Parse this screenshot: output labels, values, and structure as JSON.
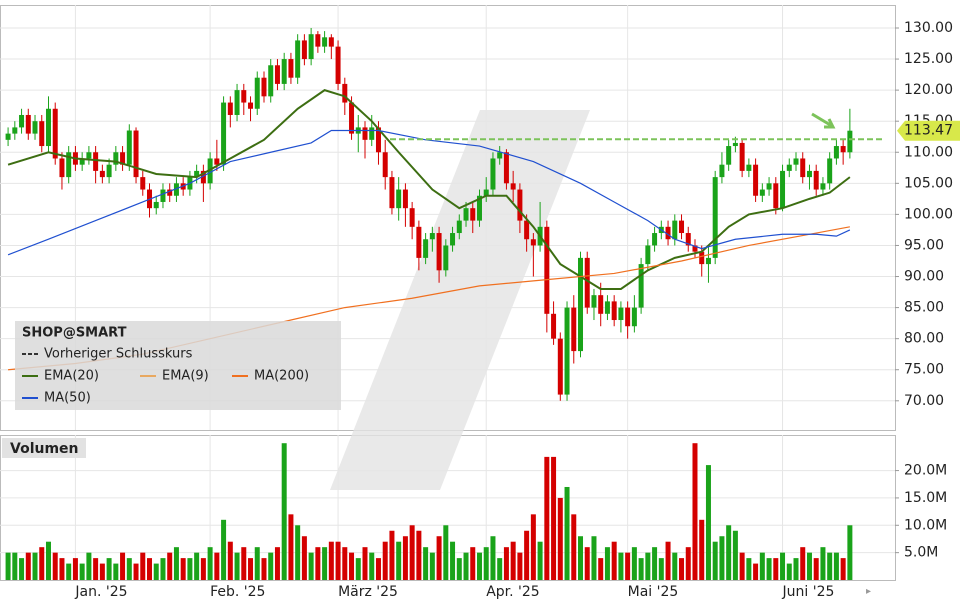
{
  "chart_data": [
    {
      "type": "candlestick",
      "name": "SHOP@SMART",
      "up_color": "#1aa31a",
      "down_color": "#d40000",
      "open": [
        112,
        113,
        114,
        116,
        113,
        115,
        111,
        117,
        109,
        106,
        110,
        108,
        109,
        110,
        107,
        106,
        108,
        110,
        108,
        113.5,
        106,
        104,
        101,
        102,
        104,
        103,
        105,
        104,
        106,
        107,
        105,
        109,
        108,
        118,
        116,
        120,
        118,
        117,
        122,
        119,
        124,
        121,
        125,
        122,
        128,
        125,
        129,
        127,
        128.5,
        127,
        121,
        118,
        113,
        114,
        112,
        114,
        110,
        106,
        101,
        104,
        101,
        98,
        93,
        96,
        97,
        91,
        95,
        97,
        99,
        101,
        99,
        103,
        104,
        109,
        110,
        105,
        104,
        99,
        96,
        95,
        98,
        84,
        80,
        71,
        85,
        78,
        93,
        85,
        87,
        84,
        86,
        83,
        85,
        82,
        85,
        92,
        95,
        97,
        98,
        96,
        99,
        97,
        95,
        94,
        92,
        93,
        106,
        108,
        111,
        111.5,
        107,
        108,
        103,
        104,
        105,
        101,
        107,
        108,
        109,
        106,
        107,
        104,
        105,
        109,
        111,
        110
      ],
      "high": [
        114,
        115,
        117,
        117,
        116,
        116,
        119,
        118,
        110,
        111,
        111,
        110,
        111,
        111,
        108,
        109,
        111,
        111,
        114.5,
        114,
        107,
        105,
        103,
        105,
        105,
        106,
        106,
        107,
        108,
        108,
        110,
        112,
        119,
        119,
        121,
        121,
        119,
        123,
        123,
        125,
        125,
        126,
        126,
        129,
        129,
        130,
        129.5,
        129.5,
        129,
        128,
        122,
        119,
        116,
        115,
        116,
        115,
        112,
        107,
        106,
        105,
        102,
        99,
        97,
        98,
        98,
        96,
        98,
        100,
        102,
        102,
        104,
        106,
        110,
        111,
        110.5,
        107,
        105,
        100,
        97,
        102,
        99,
        86,
        81,
        86,
        87,
        94,
        94,
        88,
        89,
        87,
        87,
        86,
        86,
        87,
        93,
        96,
        98,
        99,
        99,
        100,
        100,
        98,
        96,
        95,
        95,
        107,
        110,
        112,
        112.5,
        112,
        109,
        109,
        105,
        106,
        106,
        108,
        109,
        110,
        110,
        108,
        108,
        106,
        110,
        112,
        112,
        117
      ],
      "low": [
        111,
        112,
        113,
        112,
        112,
        110,
        110,
        108,
        104,
        105,
        107,
        107,
        108,
        105,
        105,
        105,
        107,
        107,
        107,
        105,
        103,
        99.5,
        100,
        101,
        102,
        102,
        103,
        103,
        105,
        102,
        104,
        107,
        107,
        114,
        115,
        116,
        115,
        116,
        118,
        118,
        120,
        120,
        121,
        121,
        124,
        124,
        126,
        126,
        125,
        120,
        116,
        112,
        110,
        109,
        111,
        108,
        104,
        100,
        99,
        98,
        96,
        91,
        92,
        94,
        89,
        90,
        94,
        96,
        98,
        97,
        98,
        102,
        103,
        108,
        104,
        102,
        97,
        94,
        90,
        94,
        81,
        79,
        70,
        70,
        76,
        77,
        84,
        83,
        82,
        83,
        82,
        81,
        80,
        81,
        84,
        91,
        94,
        96,
        95,
        95,
        96,
        94,
        93,
        90,
        89,
        92,
        105,
        107,
        110,
        106,
        106,
        102,
        102,
        103,
        100,
        100.5,
        106,
        107,
        105,
        104,
        103,
        103,
        104,
        108,
        108,
        109
      ],
      "close": [
        113,
        114,
        116,
        113,
        115,
        111,
        117,
        109,
        106,
        110,
        108,
        109,
        110,
        107,
        106,
        108,
        110,
        108,
        113.5,
        106,
        104,
        101,
        102,
        104,
        103,
        105,
        104,
        106,
        107,
        105,
        109,
        108,
        118,
        116,
        120,
        118,
        117,
        122,
        119,
        124,
        121,
        125,
        122,
        128,
        125,
        129,
        127,
        128.5,
        127,
        121,
        118,
        113,
        114,
        112,
        114,
        110,
        106,
        101,
        104,
        101,
        98,
        93,
        96,
        97,
        91,
        95,
        97,
        99,
        101,
        99,
        103,
        104,
        109,
        110,
        105,
        104,
        99,
        96,
        95,
        98,
        84,
        80,
        71,
        85,
        78,
        93,
        85,
        87,
        84,
        86,
        83,
        85,
        82,
        85,
        92,
        95,
        97,
        98,
        96,
        99,
        97,
        95,
        94,
        92,
        93,
        106,
        108,
        111,
        111.5,
        107,
        108,
        103,
        104,
        105,
        101,
        107,
        108,
        109,
        106,
        107,
        104,
        105,
        109,
        111,
        110,
        113.47
      ],
      "reference_line": {
        "name": "Vorheriger Schlusskurs",
        "value": 112.1,
        "color": "#7cc35a"
      },
      "overlays": [
        {
          "name": "EMA(20)",
          "color": "#3d6e12",
          "x": [
            0,
            6,
            10,
            16,
            22,
            28,
            33,
            38,
            43,
            47,
            50,
            54,
            58,
            63,
            67,
            71,
            74,
            78,
            82,
            88,
            91,
            95,
            99,
            103,
            107,
            110,
            115,
            119,
            122,
            125
          ],
          "values": [
            108,
            110,
            109,
            108.5,
            106.5,
            106,
            109,
            112,
            117,
            120,
            119,
            115,
            110,
            104,
            101,
            103,
            103,
            98,
            92,
            88,
            88,
            91,
            93,
            94,
            98,
            100,
            101,
            102.5,
            103.5,
            106
          ]
        },
        {
          "name": "EMA(9)",
          "color": "#e8a860",
          "visible": false
        },
        {
          "name": "MA(200)",
          "color": "#f07020",
          "x": [
            0,
            10,
            20,
            30,
            40,
            50,
            60,
            70,
            80,
            90,
            100,
            110,
            120,
            125
          ],
          "values": [
            75,
            76,
            77.5,
            80,
            82.5,
            85,
            86.5,
            88.5,
            89.5,
            90.5,
            92.5,
            95,
            97,
            98
          ]
        },
        {
          "name": "MA(50)",
          "color": "#2050d0",
          "x": [
            0,
            6,
            13,
            20,
            27,
            33,
            39,
            45,
            48,
            55,
            62,
            70,
            78,
            85,
            90,
            95,
            99,
            103,
            108,
            115,
            120,
            123,
            125
          ],
          "values": [
            93.5,
            96,
            99,
            102,
            105,
            108.5,
            110,
            111.5,
            113.5,
            113.5,
            112,
            111,
            108.5,
            105,
            102,
            99,
            96,
            94.5,
            96,
            96.8,
            96.8,
            96.5,
            97.5
          ]
        }
      ],
      "xlim": [
        -1.2,
        131.7
      ],
      "xticks": [
        {
          "value": 10,
          "label": "Jan. '25"
        },
        {
          "value": 30,
          "label": "Feb. '25"
        },
        {
          "value": 49,
          "label": "März '25"
        },
        {
          "value": 71,
          "label": "Apr. '25"
        },
        {
          "value": 92,
          "label": "Mai '25"
        },
        {
          "value": 115,
          "label": "Juni '25"
        }
      ],
      "ylim": [
        65.3,
        133.7
      ],
      "yticks": [
        {
          "value": 70,
          "label": "70.00"
        },
        {
          "value": 75,
          "label": "75.00"
        },
        {
          "value": 80,
          "label": "80.00"
        },
        {
          "value": 85,
          "label": "85.00"
        },
        {
          "value": 90,
          "label": "90.00"
        },
        {
          "value": 95,
          "label": "95.00"
        },
        {
          "value": 100,
          "label": "100.00"
        },
        {
          "value": 105,
          "label": "105.00"
        },
        {
          "value": 110,
          "label": "110.00"
        },
        {
          "value": 115,
          "label": "115.00"
        },
        {
          "value": 120,
          "label": "120.00"
        },
        {
          "value": 125,
          "label": "125.00"
        },
        {
          "value": 130,
          "label": "130.00"
        }
      ],
      "grid": true,
      "legend": "lower-left"
    },
    {
      "type": "bar",
      "title": "Volumen",
      "values": [
        5,
        5,
        4,
        5,
        5,
        6,
        7,
        5,
        4,
        3,
        4,
        3,
        5,
        4,
        3,
        4,
        3,
        5,
        4,
        3,
        5,
        4,
        3,
        4,
        5,
        6,
        4,
        4,
        5,
        4,
        6,
        5,
        11,
        7,
        5,
        6,
        4,
        6,
        4,
        5,
        6,
        25,
        12,
        10,
        8,
        5,
        6,
        6,
        7,
        7,
        6,
        5,
        4,
        6,
        5,
        4,
        7,
        9,
        7,
        8,
        10,
        9,
        6,
        5,
        8,
        10,
        7,
        4,
        5,
        6,
        5,
        6,
        8,
        4,
        6,
        7,
        5,
        9,
        12,
        7,
        22.5,
        22.5,
        15,
        17,
        12,
        8,
        6,
        8,
        4,
        6,
        7,
        5,
        5,
        6,
        4,
        5,
        6,
        4,
        7,
        5,
        4,
        6,
        25,
        11,
        21,
        7,
        8,
        10,
        9,
        5,
        4,
        3,
        5,
        4,
        4,
        5,
        3,
        4,
        6,
        5,
        4,
        6,
        5,
        5,
        4,
        10
      ],
      "ylim": [
        0,
        26.5
      ],
      "yticks": [
        {
          "value": 5,
          "label": "5.0M"
        },
        {
          "value": 10,
          "label": "10.0M"
        },
        {
          "value": 15,
          "label": "15.0M"
        },
        {
          "value": 20,
          "label": "20.0M"
        }
      ],
      "grid": true
    }
  ]
}
